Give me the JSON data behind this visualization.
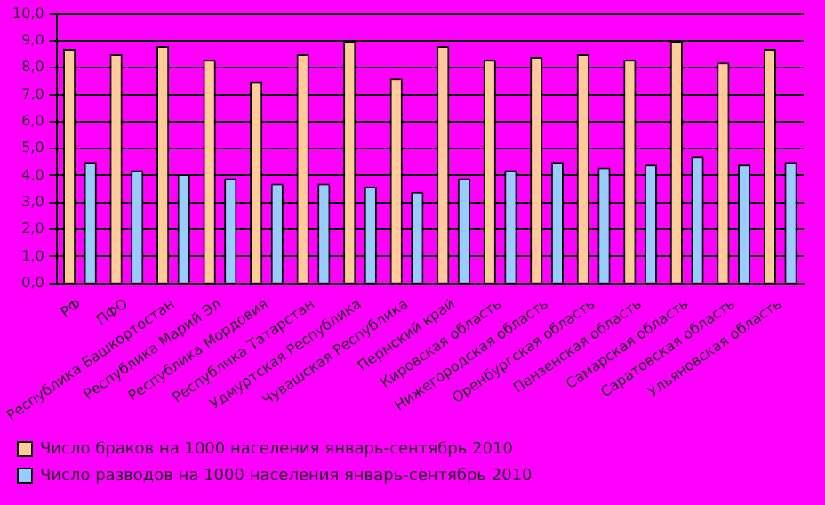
{
  "chart_data": {
    "type": "bar",
    "categories": [
      "РФ",
      "ПФО",
      "Республика Башкортостан",
      "Республика Марий Эл",
      "Республика Мордовия",
      "Республика Татарстан",
      "Удмуртская Республика",
      "Чувашская Республика",
      "Пермский край",
      "Кировская область",
      "Нижегородская область",
      "Оренбургская область",
      "Пензенская область",
      "Самарская область",
      "Саратовская область",
      "Ульяновская область"
    ],
    "series": [
      {
        "name": "Число браков на 1000 населения январь-сентябрь 2010",
        "color": "#ffcc99",
        "values": [
          8.7,
          8.5,
          8.8,
          8.3,
          7.5,
          8.5,
          9.0,
          7.6,
          8.8,
          8.3,
          8.4,
          8.5,
          8.3,
          9.0,
          8.2,
          8.7
        ]
      },
      {
        "name": "Число разводов на 1000 населения январь-сентябрь 2010",
        "color": "#99ccff",
        "values": [
          4.5,
          4.2,
          4.05,
          3.9,
          3.7,
          3.7,
          3.6,
          3.4,
          3.9,
          4.2,
          4.5,
          4.3,
          4.4,
          4.7,
          4.4,
          4.5
        ]
      }
    ],
    "ylim": [
      0,
      10
    ],
    "yticks": [
      {
        "value": 0,
        "label": "0,0"
      },
      {
        "value": 1,
        "label": "1,0"
      },
      {
        "value": 2,
        "label": "2,0"
      },
      {
        "value": 3,
        "label": "3,0"
      },
      {
        "value": 4,
        "label": "4,0"
      },
      {
        "value": 5,
        "label": "5,0"
      },
      {
        "value": 6,
        "label": "6,0"
      },
      {
        "value": 7,
        "label": "7,0"
      },
      {
        "value": 8,
        "label": "8,0"
      },
      {
        "value": 9,
        "label": "9,0"
      },
      {
        "value": 10,
        "label": "10,0"
      }
    ],
    "grid": "y",
    "legend": "bottom"
  }
}
